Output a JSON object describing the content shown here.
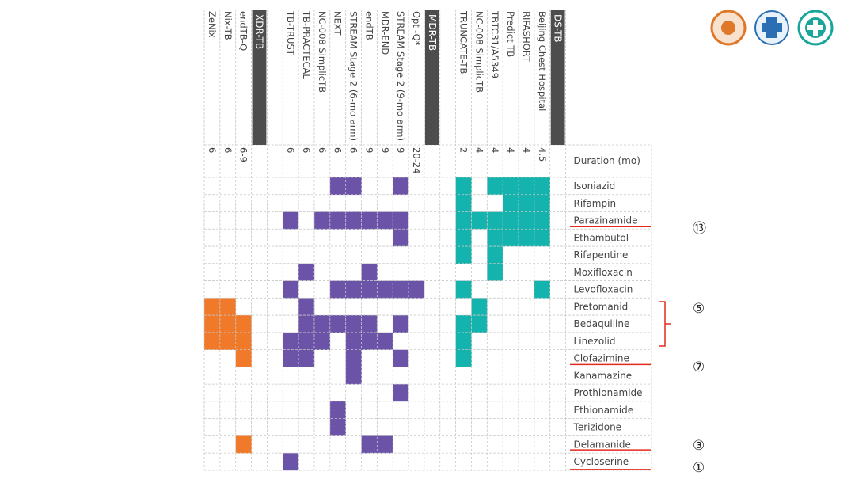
{
  "groups": [
    "XDR-TB",
    "MDR-TB",
    "DS-TB"
  ],
  "columns": [
    {
      "name": "ZeNix",
      "duration": "6"
    },
    {
      "name": "Nix-TB",
      "duration": "6"
    },
    {
      "name": "endTB-Q",
      "duration": "6-9"
    },
    {
      "name": "TB-TRUST",
      "duration": "6"
    },
    {
      "name": "TB-PRACTECAL",
      "duration": "6"
    },
    {
      "name": "NC-008 SimplicTB",
      "duration": "6"
    },
    {
      "name": "NEXT",
      "duration": "6"
    },
    {
      "name": "STREAM Stage 2 (6-mo arm)",
      "duration": "6"
    },
    {
      "name": "endTB",
      "duration": "9"
    },
    {
      "name": "MDR-END",
      "duration": "9"
    },
    {
      "name": "STREAM Stage 2 (9-mo arm)",
      "duration": "9"
    },
    {
      "name": "Opti-Q*",
      "duration": "20-24"
    },
    {
      "name": "TRUNCATE-TB",
      "duration": "2"
    },
    {
      "name": "NC-008 SimplicTB",
      "duration": "4"
    },
    {
      "name": "TBTC31/A5349",
      "duration": "4"
    },
    {
      "name": "Predict TB",
      "duration": "4"
    },
    {
      "name": "RIFASHORT",
      "duration": "4"
    },
    {
      "name": "Beijing Chest Hospital",
      "duration": "4.5"
    }
  ],
  "duration_header": "Duration (mo)",
  "drugs": [
    "Isoniazid",
    "Rifampin",
    "Parazinamide",
    "Ethambutol",
    "Rifapentine",
    "Moxifloxacin",
    "Levofloxacin",
    "Pretomanid",
    "Bedaquiline",
    "Linezolid",
    "Clofazimine",
    "Kanamazine",
    "Prothionamide",
    "Ethionamide",
    "Terizidone",
    "Delamanide",
    "Cycloserine"
  ],
  "annotations": [
    "⑬",
    "⑤",
    "⑦",
    "③",
    "①"
  ]
}
